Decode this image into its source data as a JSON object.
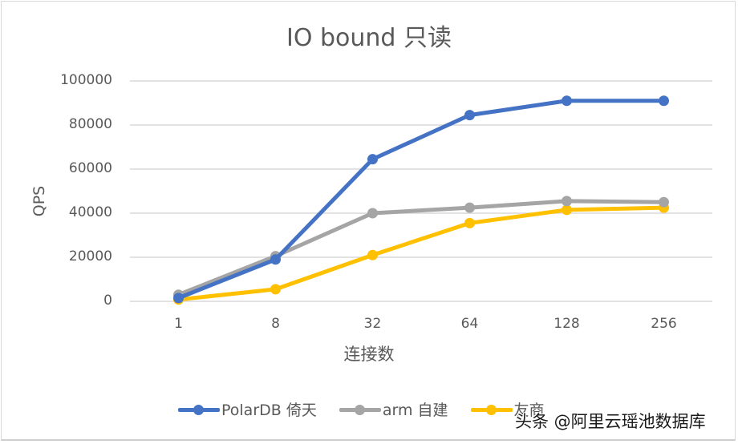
{
  "chart_data": {
    "type": "line",
    "title": "IO bound 只读",
    "xlabel": "连接数",
    "ylabel": "QPS",
    "categories": [
      "1",
      "8",
      "32",
      "64",
      "128",
      "256"
    ],
    "ylim": [
      0,
      100000
    ],
    "yticks": [
      "100000",
      "80000",
      "60000",
      "40000",
      "20000",
      "0"
    ],
    "grid": true,
    "legend_position": "bottom",
    "series": [
      {
        "name": "PolarDB 倚天",
        "color": "#4472c4",
        "values": [
          1500,
          19000,
          64500,
          84500,
          91000,
          91000
        ]
      },
      {
        "name": "arm 自建",
        "color": "#a5a5a5",
        "values": [
          3000,
          20500,
          40000,
          42500,
          45500,
          45000
        ]
      },
      {
        "name": "友商",
        "color": "#ffc000",
        "values": [
          800,
          5500,
          21000,
          35500,
          41500,
          42500
        ]
      }
    ]
  },
  "watermark": "头条 @阿里云瑶池数据库"
}
